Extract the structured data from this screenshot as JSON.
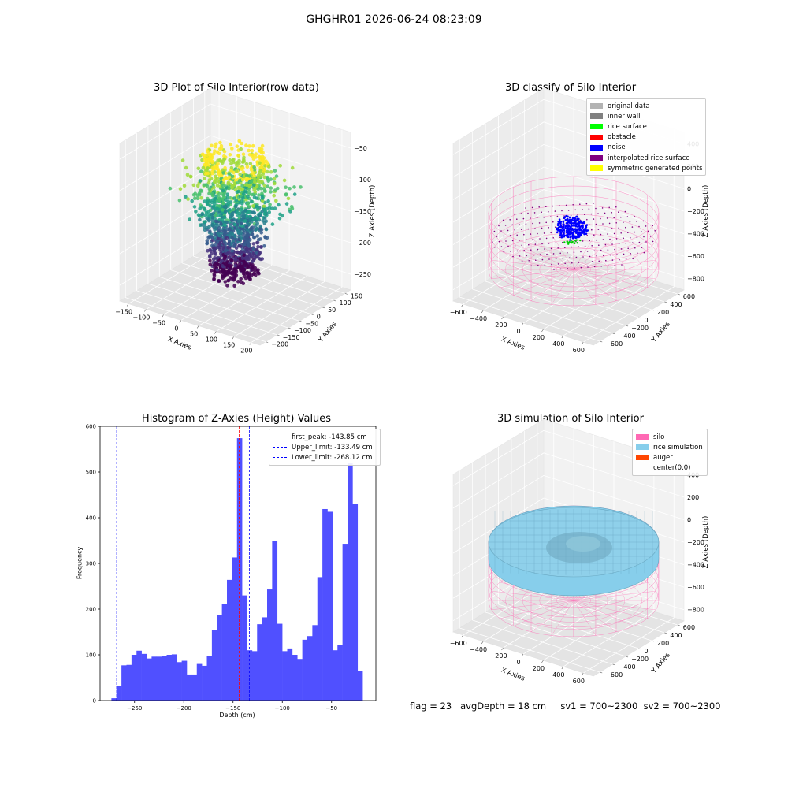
{
  "suptitle": "GHGHR01 2026-06-24 08:23:09",
  "footer": "flag = 23   avgDepth = 18 cm     sv1 = 700~2300  sv2 = 700~2300",
  "panels": {
    "raw": {
      "title": "3D Plot of Silo Interior(row data)",
      "xlabel": "X Axies",
      "ylabel": "Y Axies",
      "zlabel": "Z Axies (Depth)",
      "xticks": [
        "−150",
        "−100",
        "−50",
        "0",
        "50",
        "100",
        "150",
        "200"
      ],
      "yticks": [
        "−200",
        "−150",
        "−100",
        "−50",
        "0",
        "50",
        "100",
        "150"
      ],
      "zticks": [
        "−250",
        "−200",
        "−150",
        "−100",
        "−50"
      ]
    },
    "classify": {
      "title": "3D classify of Silo Interior",
      "xlabel": "X Axies",
      "ylabel": "Y Axies",
      "zlabel": "Z Axies (Depth)",
      "xticks": [
        "−600",
        "−400",
        "−200",
        "0",
        "200",
        "400",
        "600"
      ],
      "yticks": [
        "−600",
        "−400",
        "−200",
        "0",
        "200",
        "400",
        "600"
      ],
      "zticks": [
        "−800",
        "−600",
        "−400",
        "−200",
        "0",
        "200",
        "400"
      ],
      "legend": [
        {
          "label": "original data",
          "color": "#b3b3b3"
        },
        {
          "label": "inner wall",
          "color": "#808080"
        },
        {
          "label": "rice surface",
          "color": "#00ff00"
        },
        {
          "label": "obstacle",
          "color": "#ff0000"
        },
        {
          "label": "noise",
          "color": "#0000ff"
        },
        {
          "label": "interpolated rice surface",
          "color": "#800080"
        },
        {
          "label": "symmetric generated points",
          "color": "#ffff00"
        }
      ]
    },
    "sim": {
      "title": "3D simulation of Silo Interior",
      "xlabel": "X Axies",
      "ylabel": "Y Axies",
      "zlabel": "Z Axies (Depth)",
      "xticks": [
        "−600",
        "−400",
        "−200",
        "0",
        "200",
        "400",
        "600"
      ],
      "yticks": [
        "−600",
        "−400",
        "−200",
        "0",
        "200",
        "400",
        "600"
      ],
      "zticks": [
        "−800",
        "−600",
        "−400",
        "−200",
        "0",
        "200",
        "400"
      ],
      "legend": [
        {
          "label": "silo",
          "color": "#ff69b4"
        },
        {
          "label": "rice simulation",
          "color": "#87ceeb"
        },
        {
          "label": "auger",
          "color": "#ff4500"
        },
        {
          "label": "center(0,0)",
          "color": ""
        }
      ]
    }
  },
  "chart_data": {
    "type": "bar",
    "title": "Histogram of Z-Axies (Height) Values",
    "xlabel": "Depth (cm)",
    "ylabel": "Frequency",
    "xlim": [
      -285,
      -5
    ],
    "ylim": [
      0,
      600
    ],
    "xticks": [
      -250,
      -200,
      -150,
      -100,
      -50
    ],
    "yticks": [
      0,
      100,
      200,
      300,
      400,
      500,
      600
    ],
    "bar_color": "#5050ff",
    "bin_start": -273.5,
    "bin_width": 5.1,
    "values": [
      5,
      32,
      77,
      78,
      100,
      109,
      102,
      92,
      96,
      96,
      98,
      100,
      101,
      84,
      87,
      57,
      57,
      80,
      76,
      98,
      155,
      187,
      212,
      264,
      313,
      574,
      230,
      110,
      108,
      167,
      182,
      243,
      349,
      168,
      108,
      114,
      100,
      91,
      133,
      141,
      165,
      270,
      419,
      413,
      110,
      121,
      343,
      519,
      430,
      65
    ],
    "lines": [
      {
        "name": "first_peak: -143.85 cm",
        "x": -143.85,
        "color": "#ff0000"
      },
      {
        "name": "Upper_limit: -133.49 cm",
        "x": -133.49,
        "color": "#0000ff"
      },
      {
        "name": "Lower_limit: -268.12 cm",
        "x": -268.12,
        "color": "#0000ff"
      }
    ]
  }
}
